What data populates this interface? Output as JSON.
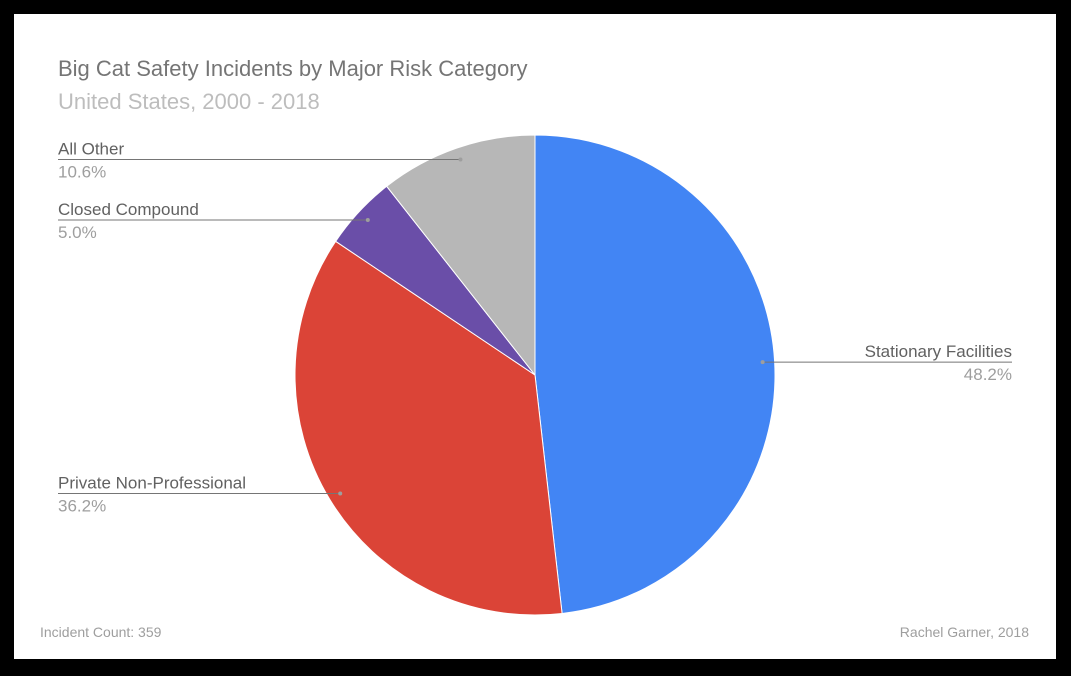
{
  "chart_data": {
    "type": "pie",
    "title": "Big Cat Safety Incidents by Major Risk Category",
    "subtitle": "United States, 2000 - 2018",
    "start_angle_deg": 0,
    "direction": "clockwise",
    "slices": [
      {
        "label": "Stationary Facilities",
        "value": 48.2,
        "value_label": "48.2%",
        "color": "#4285f4",
        "label_side": "right"
      },
      {
        "label": "Private Non-Professional",
        "value": 36.2,
        "value_label": "36.2%",
        "color": "#db4437",
        "label_side": "left"
      },
      {
        "label": "Closed Compound",
        "value": 5.0,
        "value_label": "5.0%",
        "color": "#6a4ea8",
        "label_side": "left"
      },
      {
        "label": "All Other",
        "value": 10.6,
        "value_label": "10.6%",
        "color": "#b7b7b7",
        "label_side": "left"
      }
    ],
    "footnote_left": "Incident Count: 359",
    "footnote_right": "Rachel Garner, 2018"
  }
}
